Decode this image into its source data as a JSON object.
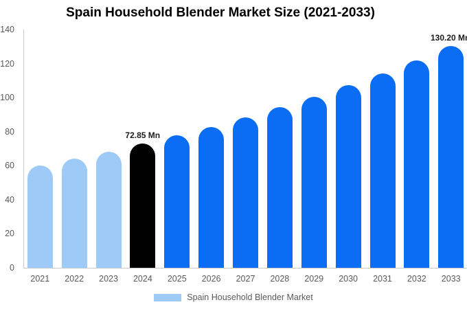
{
  "chart_data": {
    "type": "bar",
    "title": "Spain Household Blender Market Size (2021-2033)",
    "categories": [
      "2021",
      "2022",
      "2023",
      "2024",
      "2025",
      "2026",
      "2027",
      "2028",
      "2029",
      "2030",
      "2031",
      "2032",
      "2033"
    ],
    "values": [
      60.04,
      64.04,
      68.3,
      72.85,
      77.7,
      82.87,
      88.39,
      94.27,
      100.55,
      107.24,
      114.38,
      121.99,
      130.2
    ],
    "unit": "Mn",
    "xlabel": "",
    "ylabel": "",
    "ylim": [
      0,
      140
    ],
    "yticks": [
      0,
      20,
      40,
      60,
      80,
      100,
      120,
      140
    ],
    "grid": false,
    "bar_style_keys": [
      "historical",
      "historical",
      "historical",
      "highlight",
      "forecast",
      "forecast",
      "forecast",
      "forecast",
      "forecast",
      "forecast",
      "forecast",
      "forecast",
      "forecast"
    ],
    "palette": {
      "historical": "#9ECAF8",
      "highlight": "#000000",
      "forecast": "#0B6DF3"
    },
    "axis_color": "#cccccc",
    "tick_color": "#595959",
    "annotations": [
      {
        "category": "2024",
        "text": "72.85 Mn"
      },
      {
        "category": "2033",
        "text": "130.20 Mn"
      }
    ],
    "legend": {
      "position": "bottom",
      "label": "Spain Household Blender Market",
      "swatch_color": "#9ECAF8"
    }
  }
}
